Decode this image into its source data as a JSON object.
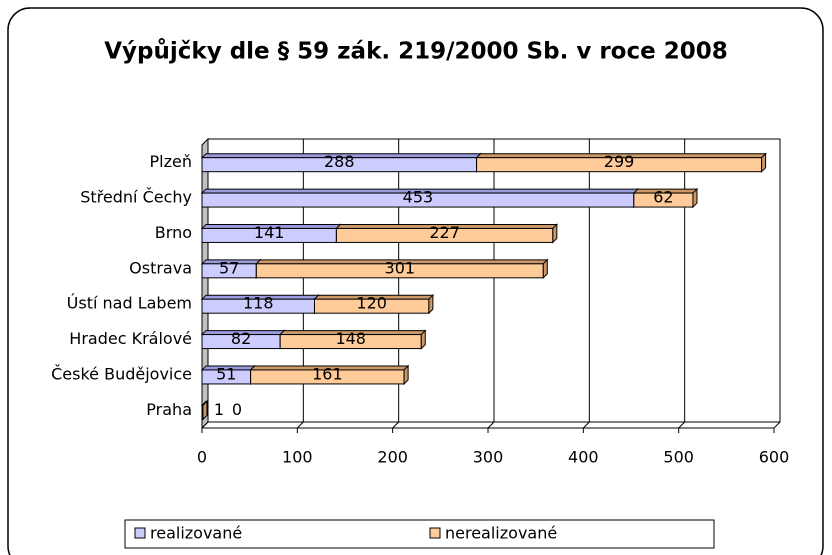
{
  "chart_data": {
    "type": "bar",
    "orientation": "horizontal",
    "stacked": true,
    "title": "Výpůjčky dle § 59 zák. 219/2000 Sb. v roce 2008",
    "categories": [
      "Plzeň",
      "Střední Čechy",
      "Brno",
      "Ostrava",
      "Ústí nad Labem",
      "Hradec Králové",
      "České Budějovice",
      "Praha"
    ],
    "series": [
      {
        "name": "realizované",
        "color": "#ccccff",
        "values": [
          288,
          453,
          141,
          57,
          118,
          82,
          51,
          1
        ]
      },
      {
        "name": "nerealizované",
        "color": "#ffcc99",
        "values": [
          299,
          62,
          227,
          301,
          120,
          148,
          161,
          0
        ]
      }
    ],
    "xlim": [
      0,
      600
    ],
    "xticks": [
      0,
      100,
      200,
      300,
      400,
      500,
      600
    ],
    "grid": true,
    "legend": "bottom"
  }
}
